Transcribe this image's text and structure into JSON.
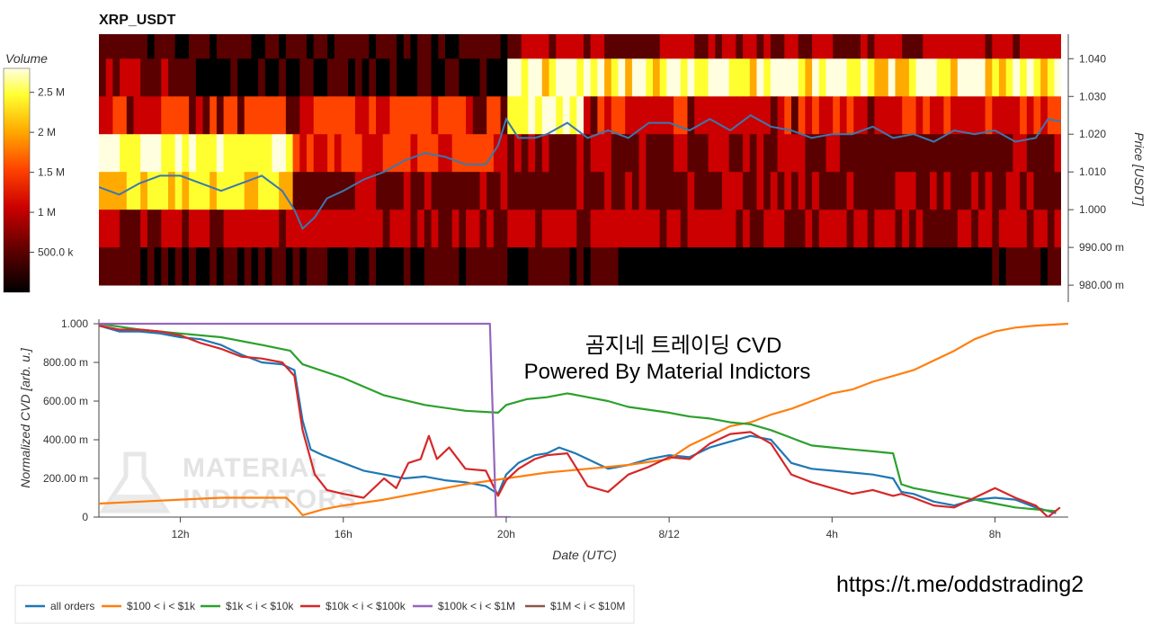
{
  "heatmap": {
    "title": "XRP_USDT",
    "colorbar_title": "Volume",
    "colorbar_ticks": [
      "2.5 M",
      "2 M",
      "1.5 M",
      "1 M",
      "500.0 k"
    ],
    "colorbar_tick_values": [
      2500000,
      2000000,
      1500000,
      1000000,
      500000
    ],
    "colorbar_max": 2800000,
    "y_axis_label": "Price [USDT]",
    "y_ticks": [
      "1.040",
      "1.030",
      "1.020",
      "1.010",
      "1.000",
      "990.00 m",
      "980.00 m"
    ],
    "y_tick_values": [
      1.04,
      1.03,
      1.02,
      1.01,
      1.0,
      0.99,
      0.98
    ],
    "y_range": [
      0.9755,
      1.0465
    ],
    "price_bands": [
      1.045,
      1.035,
      1.025,
      1.015,
      1.005,
      0.995,
      0.985
    ],
    "colors": [
      "#000000",
      "#5a0000",
      "#cc0000",
      "#ff4400",
      "#ffaa00",
      "#ffff30",
      "#ffffe0"
    ]
  },
  "chart_data": {
    "type": "line",
    "xlabel": "Date (UTC)",
    "ylabel": "Normalized CVD [arb. u.]",
    "x_ticks": [
      "12h",
      "16h",
      "20h",
      "8/12",
      "4h",
      "8h"
    ],
    "x_tick_values": [
      12,
      16,
      20,
      24,
      28,
      32
    ],
    "x_range": [
      10,
      33.8
    ],
    "y_ticks": [
      "1.000",
      "800.00 m",
      "600.00 m",
      "400.00 m",
      "200.00 m",
      "0"
    ],
    "y_tick_values": [
      1.0,
      0.8,
      0.6,
      0.4,
      0.2,
      0.0
    ],
    "ylim": [
      0,
      1.0
    ],
    "series": [
      {
        "name": "all orders",
        "color": "#1f77b4",
        "points": [
          [
            10,
            0.99
          ],
          [
            10.5,
            0.96
          ],
          [
            11,
            0.96
          ],
          [
            11.5,
            0.95
          ],
          [
            12,
            0.93
          ],
          [
            12.5,
            0.92
          ],
          [
            13,
            0.89
          ],
          [
            13.5,
            0.84
          ],
          [
            14,
            0.8
          ],
          [
            14.5,
            0.79
          ],
          [
            14.8,
            0.76
          ],
          [
            15,
            0.5
          ],
          [
            15.2,
            0.35
          ],
          [
            15.5,
            0.32
          ],
          [
            16,
            0.28
          ],
          [
            16.5,
            0.24
          ],
          [
            17,
            0.22
          ],
          [
            17.5,
            0.2
          ],
          [
            18,
            0.21
          ],
          [
            18.5,
            0.19
          ],
          [
            19,
            0.18
          ],
          [
            19.5,
            0.16
          ],
          [
            19.8,
            0.12
          ],
          [
            20,
            0.22
          ],
          [
            20.3,
            0.28
          ],
          [
            20.7,
            0.32
          ],
          [
            21,
            0.33
          ],
          [
            21.3,
            0.36
          ],
          [
            21.7,
            0.33
          ],
          [
            22,
            0.3
          ],
          [
            22.5,
            0.25
          ],
          [
            23,
            0.27
          ],
          [
            23.5,
            0.3
          ],
          [
            24,
            0.32
          ],
          [
            24.5,
            0.31
          ],
          [
            25,
            0.36
          ],
          [
            25.5,
            0.39
          ],
          [
            26,
            0.42
          ],
          [
            26.5,
            0.4
          ],
          [
            27,
            0.28
          ],
          [
            27.5,
            0.25
          ],
          [
            28,
            0.24
          ],
          [
            28.5,
            0.23
          ],
          [
            29,
            0.22
          ],
          [
            29.5,
            0.2
          ],
          [
            29.7,
            0.13
          ],
          [
            30,
            0.12
          ],
          [
            30.5,
            0.08
          ],
          [
            31,
            0.06
          ],
          [
            31.5,
            0.09
          ],
          [
            32,
            0.1
          ],
          [
            32.5,
            0.09
          ],
          [
            33,
            0.05
          ],
          [
            33.5,
            0.02
          ]
        ]
      },
      {
        "name": "$100 < i < $1k",
        "color": "#ff7f0e",
        "points": [
          [
            10,
            0.07
          ],
          [
            11,
            0.08
          ],
          [
            12,
            0.09
          ],
          [
            13,
            0.1
          ],
          [
            14,
            0.1
          ],
          [
            14.6,
            0.1
          ],
          [
            14.8,
            0.06
          ],
          [
            15,
            0.01
          ],
          [
            15.5,
            0.04
          ],
          [
            16,
            0.06
          ],
          [
            17,
            0.09
          ],
          [
            18,
            0.13
          ],
          [
            19,
            0.17
          ],
          [
            20,
            0.2
          ],
          [
            21,
            0.23
          ],
          [
            22,
            0.25
          ],
          [
            23,
            0.27
          ],
          [
            24,
            0.3
          ],
          [
            24.5,
            0.37
          ],
          [
            25,
            0.42
          ],
          [
            25.5,
            0.47
          ],
          [
            26,
            0.49
          ],
          [
            26.5,
            0.53
          ],
          [
            27,
            0.56
          ],
          [
            27.5,
            0.6
          ],
          [
            28,
            0.64
          ],
          [
            28.5,
            0.66
          ],
          [
            29,
            0.7
          ],
          [
            29.5,
            0.73
          ],
          [
            30,
            0.76
          ],
          [
            30.5,
            0.81
          ],
          [
            31,
            0.86
          ],
          [
            31.5,
            0.92
          ],
          [
            32,
            0.96
          ],
          [
            32.5,
            0.98
          ],
          [
            33,
            0.99
          ],
          [
            33.8,
            1.0
          ]
        ]
      },
      {
        "name": "$1k < i < $10k",
        "color": "#2ca02c",
        "points": [
          [
            10,
            1.0
          ],
          [
            11,
            0.97
          ],
          [
            12,
            0.95
          ],
          [
            13,
            0.93
          ],
          [
            14,
            0.89
          ],
          [
            14.7,
            0.86
          ],
          [
            15,
            0.79
          ],
          [
            16,
            0.72
          ],
          [
            17,
            0.63
          ],
          [
            18,
            0.58
          ],
          [
            19,
            0.55
          ],
          [
            19.8,
            0.54
          ],
          [
            20,
            0.58
          ],
          [
            20.5,
            0.61
          ],
          [
            21,
            0.62
          ],
          [
            21.5,
            0.64
          ],
          [
            22,
            0.62
          ],
          [
            22.5,
            0.6
          ],
          [
            23,
            0.57
          ],
          [
            24,
            0.54
          ],
          [
            24.5,
            0.52
          ],
          [
            25,
            0.51
          ],
          [
            25.5,
            0.49
          ],
          [
            26,
            0.48
          ],
          [
            26.5,
            0.45
          ],
          [
            27,
            0.41
          ],
          [
            27.5,
            0.37
          ],
          [
            28,
            0.36
          ],
          [
            28.5,
            0.35
          ],
          [
            29,
            0.34
          ],
          [
            29.5,
            0.33
          ],
          [
            29.7,
            0.17
          ],
          [
            30,
            0.15
          ],
          [
            30.5,
            0.13
          ],
          [
            31,
            0.11
          ],
          [
            31.5,
            0.09
          ],
          [
            32,
            0.07
          ],
          [
            32.5,
            0.05
          ],
          [
            33,
            0.04
          ],
          [
            33.5,
            0.03
          ]
        ]
      },
      {
        "name": "$10k < i < $100k",
        "color": "#d62728",
        "points": [
          [
            10,
            0.99
          ],
          [
            10.5,
            0.97
          ],
          [
            11,
            0.97
          ],
          [
            11.5,
            0.96
          ],
          [
            12,
            0.94
          ],
          [
            12.5,
            0.9
          ],
          [
            13,
            0.87
          ],
          [
            13.5,
            0.83
          ],
          [
            14,
            0.82
          ],
          [
            14.5,
            0.8
          ],
          [
            14.8,
            0.73
          ],
          [
            15,
            0.45
          ],
          [
            15.3,
            0.22
          ],
          [
            15.6,
            0.14
          ],
          [
            16,
            0.12
          ],
          [
            16.5,
            0.1
          ],
          [
            17,
            0.2
          ],
          [
            17.3,
            0.15
          ],
          [
            17.6,
            0.28
          ],
          [
            17.9,
            0.3
          ],
          [
            18.1,
            0.42
          ],
          [
            18.3,
            0.3
          ],
          [
            18.6,
            0.36
          ],
          [
            19,
            0.25
          ],
          [
            19.5,
            0.24
          ],
          [
            19.8,
            0.11
          ],
          [
            20,
            0.19
          ],
          [
            20.3,
            0.25
          ],
          [
            20.7,
            0.3
          ],
          [
            21,
            0.32
          ],
          [
            21.5,
            0.33
          ],
          [
            22,
            0.16
          ],
          [
            22.5,
            0.13
          ],
          [
            23,
            0.22
          ],
          [
            23.5,
            0.26
          ],
          [
            24,
            0.31
          ],
          [
            24.5,
            0.3
          ],
          [
            25,
            0.38
          ],
          [
            25.5,
            0.43
          ],
          [
            26,
            0.44
          ],
          [
            26.5,
            0.38
          ],
          [
            27,
            0.22
          ],
          [
            27.5,
            0.18
          ],
          [
            28,
            0.15
          ],
          [
            28.5,
            0.12
          ],
          [
            29,
            0.14
          ],
          [
            29.5,
            0.11
          ],
          [
            29.7,
            0.12
          ],
          [
            30,
            0.1
          ],
          [
            30.5,
            0.06
          ],
          [
            31,
            0.05
          ],
          [
            31.5,
            0.1
          ],
          [
            32,
            0.15
          ],
          [
            32.5,
            0.1
          ],
          [
            33,
            0.06
          ],
          [
            33.3,
            0.0
          ],
          [
            33.6,
            0.05
          ]
        ]
      },
      {
        "name": "$100k < i < $1M",
        "color": "#9467bd",
        "points": [
          [
            10,
            1.0
          ],
          [
            19.6,
            1.0
          ],
          [
            19.75,
            0.0
          ],
          [
            20.1,
            0.0
          ]
        ]
      },
      {
        "name": "$1M < i < $10M",
        "color": "#8c564b",
        "points": []
      }
    ]
  },
  "price_line": [
    [
      10,
      1.006
    ],
    [
      10.5,
      1.004
    ],
    [
      11,
      1.007
    ],
    [
      11.5,
      1.009
    ],
    [
      12,
      1.009
    ],
    [
      12.5,
      1.007
    ],
    [
      13,
      1.005
    ],
    [
      13.5,
      1.007
    ],
    [
      14,
      1.009
    ],
    [
      14.5,
      1.005
    ],
    [
      14.8,
      1.0
    ],
    [
      15,
      0.995
    ],
    [
      15.3,
      0.998
    ],
    [
      15.6,
      1.003
    ],
    [
      16,
      1.005
    ],
    [
      16.5,
      1.008
    ],
    [
      17,
      1.01
    ],
    [
      17.5,
      1.013
    ],
    [
      18,
      1.015
    ],
    [
      18.5,
      1.014
    ],
    [
      19,
      1.012
    ],
    [
      19.5,
      1.012
    ],
    [
      19.8,
      1.017
    ],
    [
      20,
      1.024
    ],
    [
      20.3,
      1.019
    ],
    [
      20.7,
      1.019
    ],
    [
      21,
      1.02
    ],
    [
      21.5,
      1.023
    ],
    [
      22,
      1.019
    ],
    [
      22.5,
      1.021
    ],
    [
      23,
      1.019
    ],
    [
      23.5,
      1.023
    ],
    [
      24,
      1.023
    ],
    [
      24.5,
      1.021
    ],
    [
      25,
      1.024
    ],
    [
      25.5,
      1.021
    ],
    [
      26,
      1.025
    ],
    [
      26.5,
      1.022
    ],
    [
      27,
      1.021
    ],
    [
      27.5,
      1.019
    ],
    [
      28,
      1.02
    ],
    [
      28.5,
      1.02
    ],
    [
      29,
      1.022
    ],
    [
      29.5,
      1.019
    ],
    [
      30,
      1.02
    ],
    [
      30.5,
      1.018
    ],
    [
      31,
      1.021
    ],
    [
      31.5,
      1.02
    ],
    [
      32,
      1.021
    ],
    [
      32.5,
      1.018
    ],
    [
      33,
      1.019
    ],
    [
      33.3,
      1.024
    ],
    [
      33.8,
      1.023
    ]
  ],
  "overlay": {
    "line1": "곰지네 트레이딩 CVD",
    "line2": "Powered By Material Indictors"
  },
  "watermark": [
    "MATERIAL",
    "INDICATORS"
  ],
  "url": "https://t.me/oddstrading2",
  "legend": [
    {
      "label": "all orders",
      "color": "#1f77b4"
    },
    {
      "label": "$100 < i < $1k",
      "color": "#ff7f0e"
    },
    {
      "label": "$1k < i < $10k",
      "color": "#2ca02c"
    },
    {
      "label": "$10k < i < $100k",
      "color": "#d62728"
    },
    {
      "label": "$100k < i < $1M",
      "color": "#9467bd"
    },
    {
      "label": "$1M < i < $10M",
      "color": "#8c564b"
    }
  ]
}
